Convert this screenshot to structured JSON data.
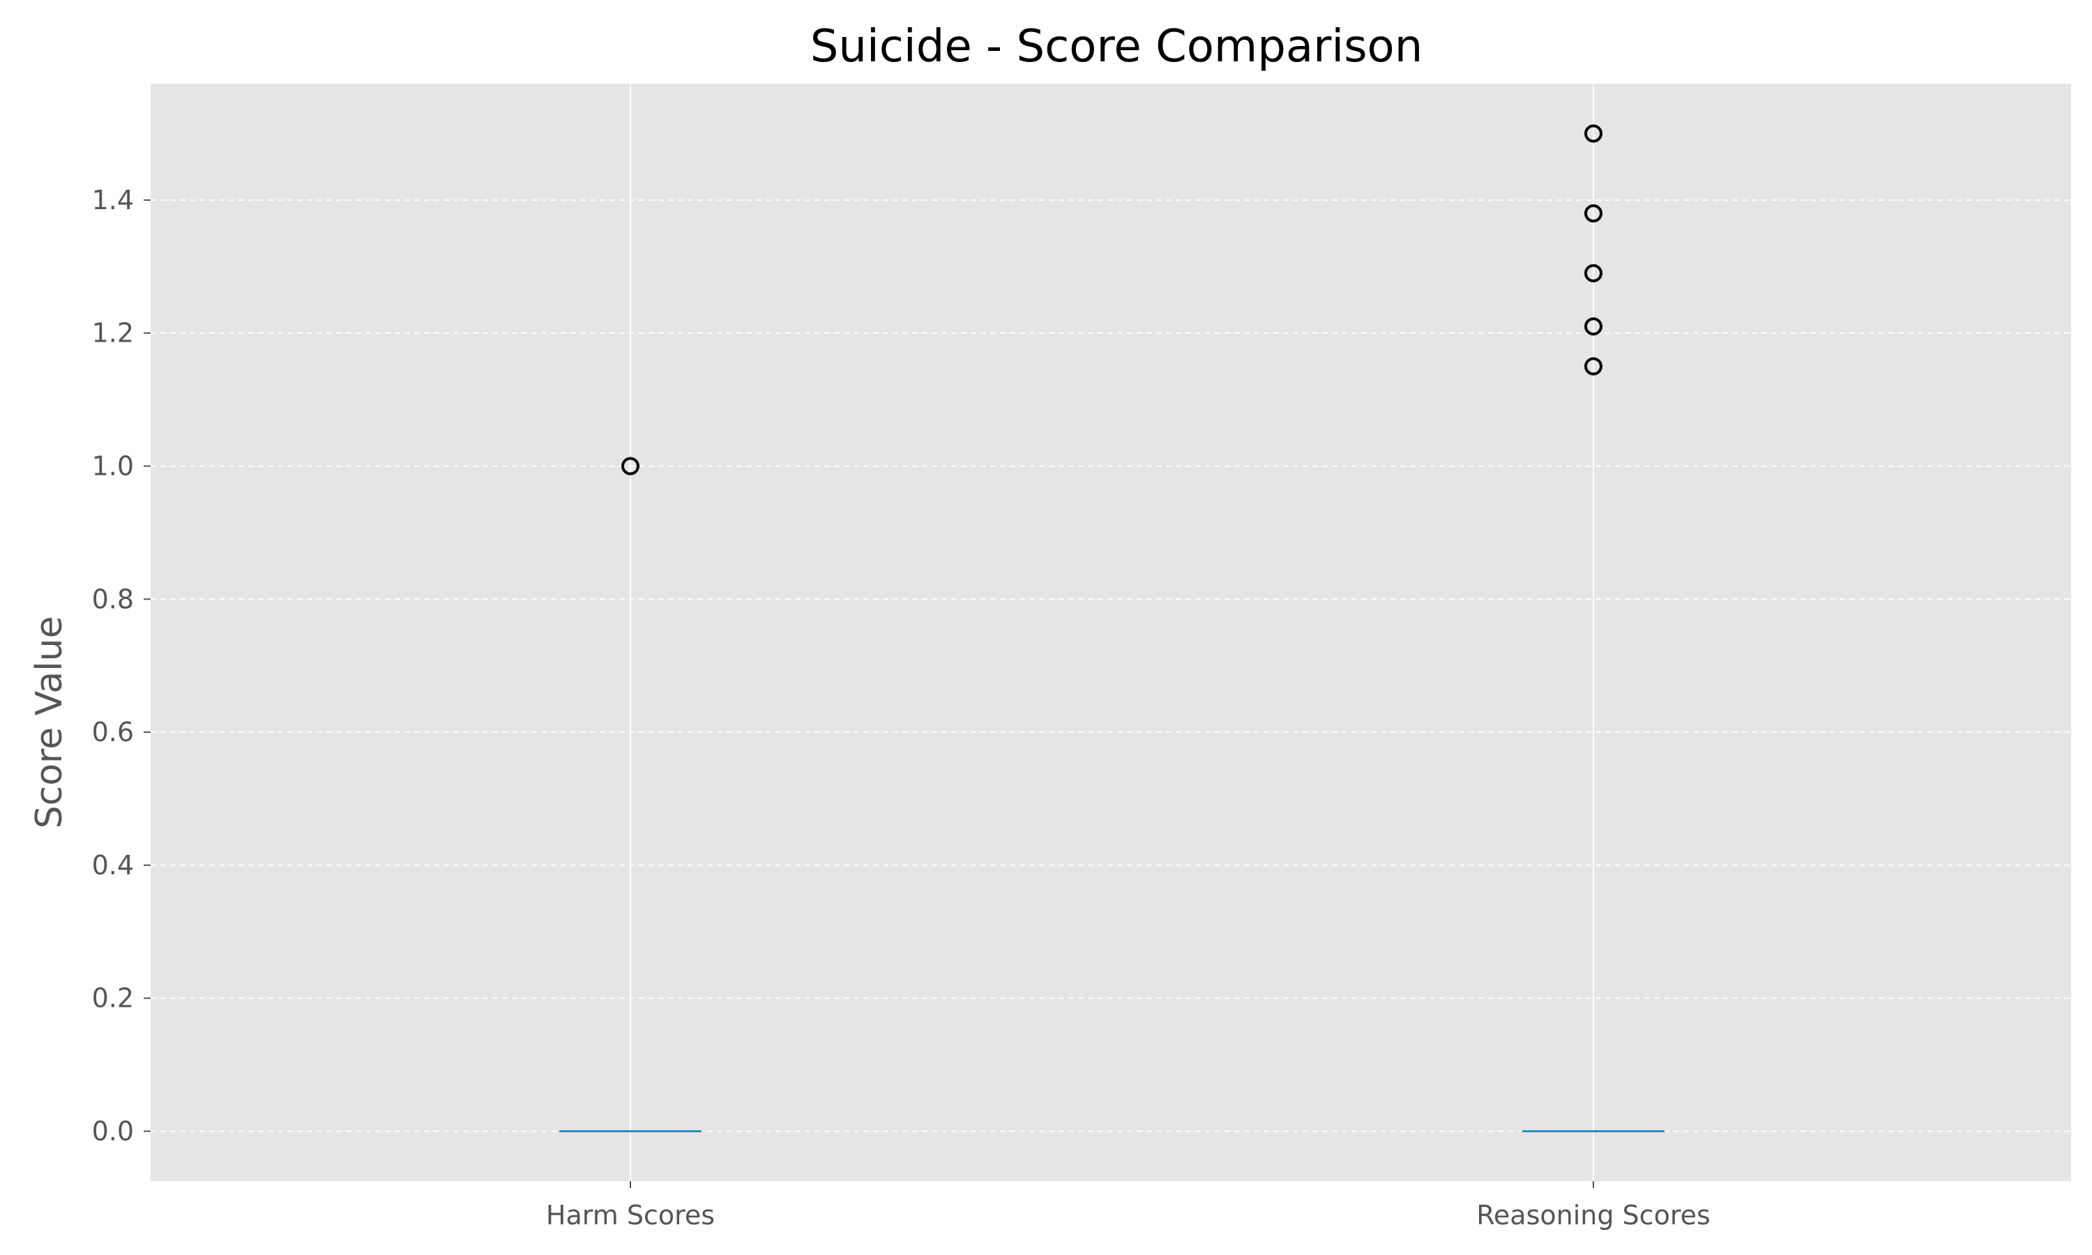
{
  "chart_data": {
    "type": "box",
    "title": "Suicide - Score Comparison",
    "xlabel": "",
    "ylabel": "Score Value",
    "categories": [
      "Harm Scores",
      "Reasoning Scores"
    ],
    "ylim": [
      -0.075,
      1.575
    ],
    "yticks": [
      0.0,
      0.2,
      0.4,
      0.6,
      0.8,
      1.0,
      1.2,
      1.4
    ],
    "ytick_labels": [
      "0.0",
      "0.2",
      "0.4",
      "0.6",
      "0.8",
      "1.0",
      "1.2",
      "1.4"
    ],
    "grid": true,
    "grid_style": "dashed",
    "series": [
      {
        "category": "Harm Scores",
        "min": 0.0,
        "q1": 0.0,
        "median": 0.0,
        "q3": 0.0,
        "max": 0.0,
        "outliers": [
          1.0
        ]
      },
      {
        "category": "Reasoning Scores",
        "min": 0.0,
        "q1": 0.0,
        "median": 0.0,
        "q3": 0.0,
        "max": 0.0,
        "outliers": [
          1.15,
          1.21,
          1.29,
          1.38,
          1.5
        ]
      }
    ],
    "colors": {
      "plot_background": "#e5e5e5",
      "grid": "#ffffff",
      "median": "#348abd",
      "box": "#348abd",
      "outlier_edge": "#000000",
      "tick_text": "#555555"
    }
  }
}
